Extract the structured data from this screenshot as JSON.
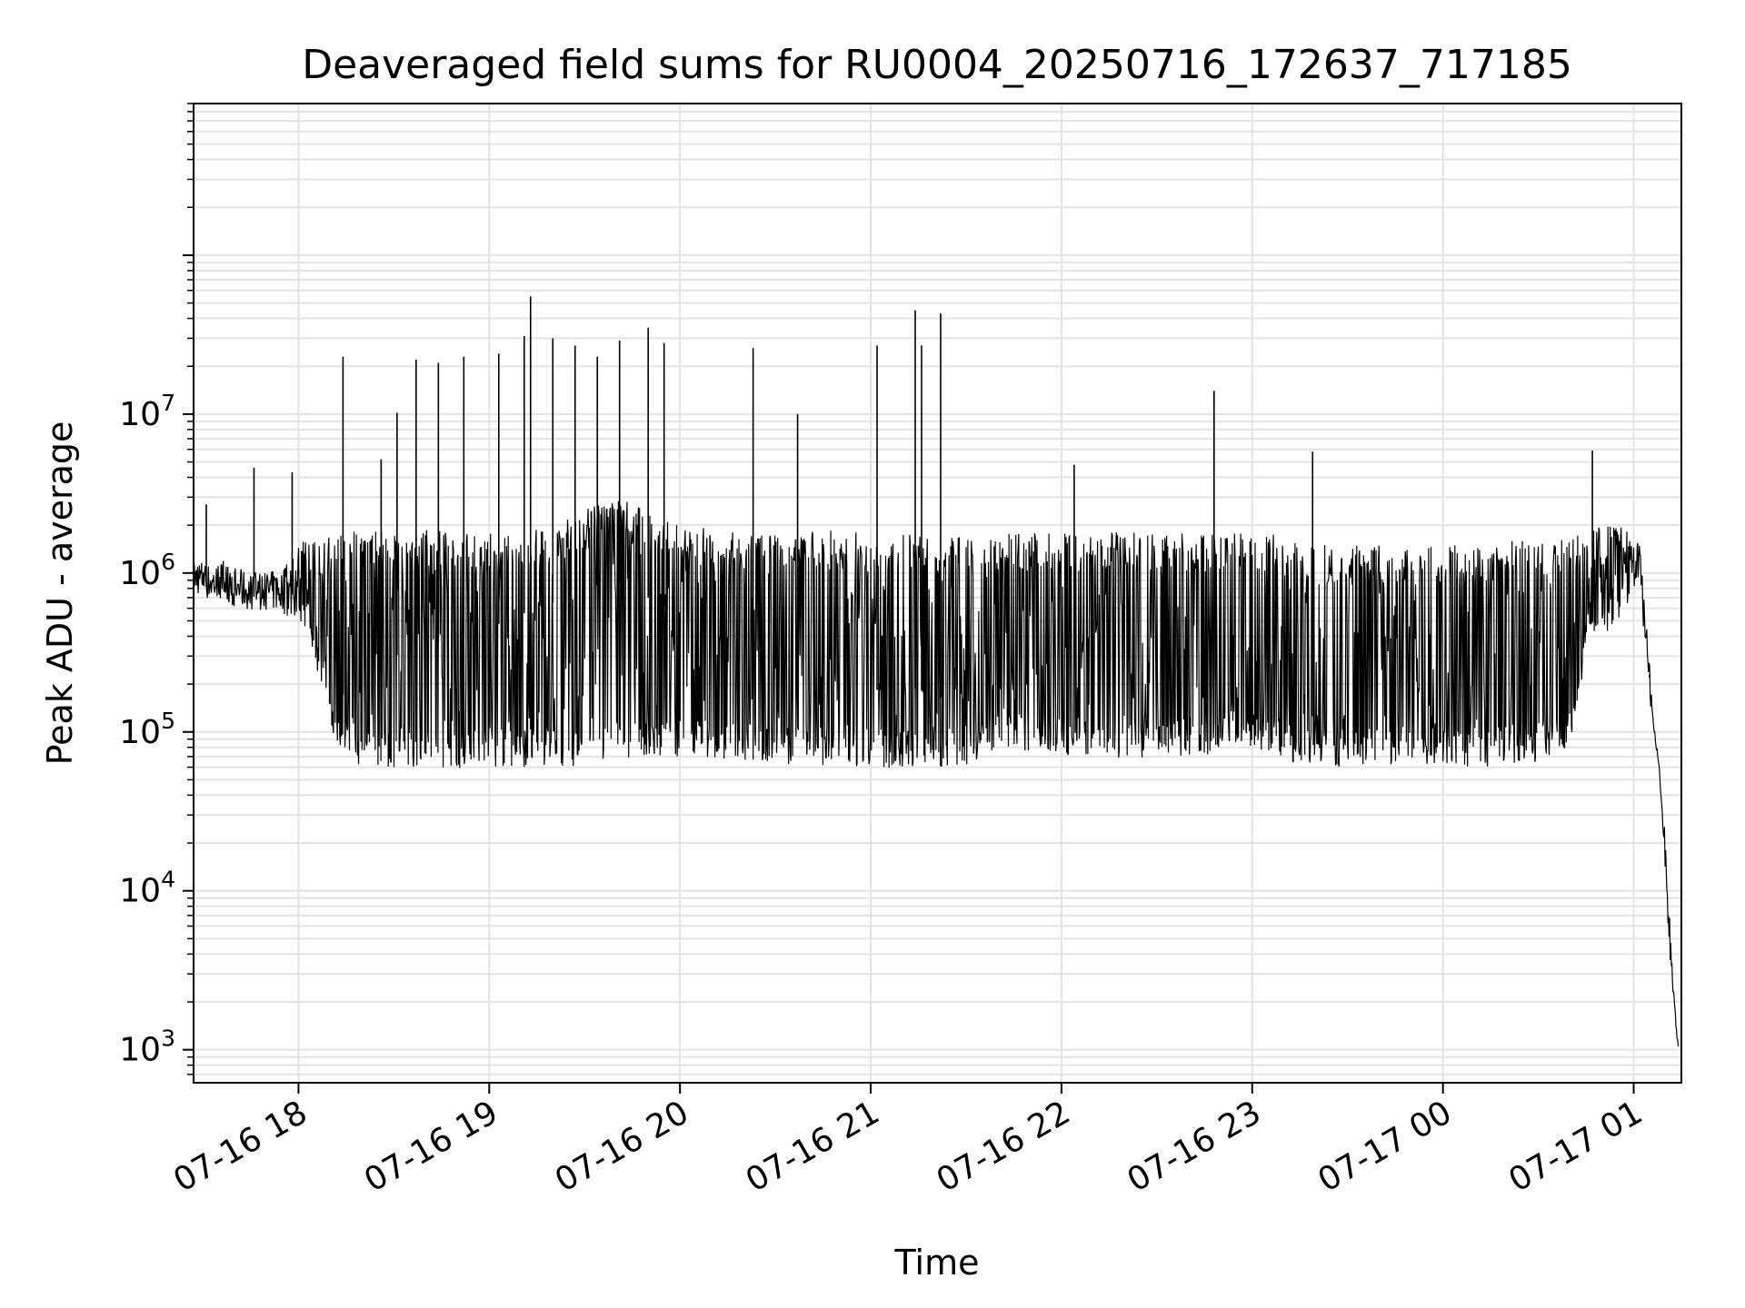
{
  "chart_data": {
    "type": "line",
    "title": "Deaveraged field sums for RU0004_20250716_172637_717185",
    "xlabel": "Time",
    "ylabel": "Peak ADU - average",
    "yscale": "log",
    "grid": true,
    "line_color": "#000000",
    "xlim": [
      "2025-07-16 17:27",
      "2025-07-17 01:15"
    ],
    "ylim": [
      620,
      900000000
    ],
    "x_ticks": [
      {
        "value": "2025-07-16 18:00",
        "label": "07-16 18"
      },
      {
        "value": "2025-07-16 19:00",
        "label": "07-16 19"
      },
      {
        "value": "2025-07-16 20:00",
        "label": "07-16 20"
      },
      {
        "value": "2025-07-16 21:00",
        "label": "07-16 21"
      },
      {
        "value": "2025-07-16 22:00",
        "label": "07-16 22"
      },
      {
        "value": "2025-07-16 23:00",
        "label": "07-16 23"
      },
      {
        "value": "2025-07-17 00:00",
        "label": "07-17 00"
      },
      {
        "value": "2025-07-17 01:00",
        "label": "07-17 01"
      }
    ],
    "y_ticks": [
      {
        "value": 1000,
        "base": "10",
        "exp": "3"
      },
      {
        "value": 10000,
        "base": "10",
        "exp": "4"
      },
      {
        "value": 100000,
        "base": "10",
        "exp": "5"
      },
      {
        "value": 1000000,
        "base": "10",
        "exp": "6"
      },
      {
        "value": 10000000,
        "base": "10",
        "exp": "7"
      }
    ],
    "series": [
      {
        "x": [
          "2025-07-16 17:27",
          "2025-07-16 17:30",
          "2025-07-16 17:33",
          "2025-07-16 17:36",
          "2025-07-16 17:40",
          "2025-07-16 17:45",
          "2025-07-16 17:50",
          "2025-07-16 17:55",
          "2025-07-16 18:00",
          "2025-07-16 18:05",
          "2025-07-16 18:10",
          "2025-07-16 18:15",
          "2025-07-16 18:20",
          "2025-07-16 18:30",
          "2025-07-16 18:40",
          "2025-07-16 18:50",
          "2025-07-16 19:00",
          "2025-07-16 19:10",
          "2025-07-16 19:20",
          "2025-07-16 19:30",
          "2025-07-16 19:40",
          "2025-07-16 19:50",
          "2025-07-16 20:00",
          "2025-07-16 20:10",
          "2025-07-16 20:20",
          "2025-07-16 20:30",
          "2025-07-16 20:40",
          "2025-07-16 20:50",
          "2025-07-16 21:00",
          "2025-07-16 21:10",
          "2025-07-16 21:20",
          "2025-07-16 21:30",
          "2025-07-16 21:35",
          "2025-07-16 21:40",
          "2025-07-16 21:50",
          "2025-07-16 22:00",
          "2025-07-16 22:10",
          "2025-07-16 22:20",
          "2025-07-16 22:30",
          "2025-07-16 22:40",
          "2025-07-16 22:50",
          "2025-07-16 22:55",
          "2025-07-16 23:00",
          "2025-07-16 23:10",
          "2025-07-16 23:15",
          "2025-07-16 23:20",
          "2025-07-16 23:30",
          "2025-07-16 23:40",
          "2025-07-16 23:50",
          "2025-07-17 00:00",
          "2025-07-17 00:10",
          "2025-07-17 00:20",
          "2025-07-17 00:30",
          "2025-07-17 00:40",
          "2025-07-17 00:45",
          "2025-07-17 00:50",
          "2025-07-17 00:55",
          "2025-07-17 01:00",
          "2025-07-17 01:02",
          "2025-07-17 01:04",
          "2025-07-17 01:06",
          "2025-07-17 01:08",
          "2025-07-17 01:10",
          "2025-07-17 01:12",
          "2025-07-17 01:14"
        ],
        "y": [
          900000,
          800000,
          850000,
          750000,
          800000,
          700000,
          750000,
          650000,
          800000,
          500000,
          300000,
          150000,
          250000,
          300000,
          350000,
          400000,
          450000,
          550000,
          650000,
          800000,
          900000,
          700000,
          550000,
          350000,
          200000,
          150000,
          170000,
          160000,
          180000,
          200000,
          170000,
          140000,
          120000,
          400000,
          350000,
          300000,
          280000,
          250000,
          240000,
          230000,
          220000,
          400000,
          350000,
          300000,
          150000,
          120000,
          250000,
          250000,
          240000,
          250000,
          260000,
          270000,
          280000,
          400000,
          650000,
          800000,
          900000,
          1100000,
          1050000,
          400000,
          120000,
          60000,
          15000,
          3000,
          1000
        ],
        "lo": [
          750000,
          700000,
          650000,
          680000,
          600000,
          580000,
          600000,
          550000,
          500000,
          300000,
          90000,
          70000,
          60000,
          60000,
          60000,
          58000,
          60000,
          60000,
          62000,
          60000,
          62000,
          65000,
          70000,
          68000,
          65000,
          62000,
          60000,
          58000,
          60000,
          58000,
          60000,
          62000,
          70000,
          80000,
          75000,
          72000,
          70000,
          68000,
          70000,
          70000,
          72000,
          80000,
          75000,
          70000,
          60000,
          55000,
          62000,
          60000,
          62000,
          62000,
          60000,
          62000,
          65000,
          80000,
          300000,
          400000,
          500000,
          700000,
          700000,
          300000,
          100000,
          50000,
          12000,
          2500,
          1000
        ],
        "hi": [
          1300000,
          1200000,
          1100000,
          1200000,
          1100000,
          1000000,
          1000000,
          1100000,
          1600000,
          1600000,
          1700000,
          1800000,
          1900000,
          1800000,
          1900000,
          1800000,
          1800000,
          1900000,
          2000000,
          2500000,
          3000000,
          2500000,
          2000000,
          1900000,
          1800000,
          1800000,
          1800000,
          1900000,
          1800000,
          1800000,
          1700000,
          1700000,
          1500000,
          1800000,
          1800000,
          1800000,
          1800000,
          1800000,
          1800000,
          1800000,
          1800000,
          1900000,
          1900000,
          1700000,
          1500000,
          1500000,
          1500000,
          1500000,
          1500000,
          1500000,
          1500000,
          1600000,
          1600000,
          1700000,
          1800000,
          2000000,
          2200000,
          1800000,
          1500000,
          600000,
          150000,
          70000,
          20000,
          4000,
          1000
        ]
      }
    ],
    "spikes": [
      {
        "x": "2025-07-16 17:31",
        "y": 2700000
      },
      {
        "x": "2025-07-16 17:46",
        "y": 4600000
      },
      {
        "x": "2025-07-16 17:58",
        "y": 4300000
      },
      {
        "x": "2025-07-16 18:14",
        "y": 23000000
      },
      {
        "x": "2025-07-16 18:26",
        "y": 5200000
      },
      {
        "x": "2025-07-16 18:31",
        "y": 10200000
      },
      {
        "x": "2025-07-16 18:37",
        "y": 22000000
      },
      {
        "x": "2025-07-16 18:44",
        "y": 21000000
      },
      {
        "x": "2025-07-16 18:52",
        "y": 23000000
      },
      {
        "x": "2025-07-16 19:03",
        "y": 24000000
      },
      {
        "x": "2025-07-16 19:11",
        "y": 31000000
      },
      {
        "x": "2025-07-16 19:13",
        "y": 55000000
      },
      {
        "x": "2025-07-16 19:20",
        "y": 30000000
      },
      {
        "x": "2025-07-16 19:27",
        "y": 27000000
      },
      {
        "x": "2025-07-16 19:34",
        "y": 23000000
      },
      {
        "x": "2025-07-16 19:41",
        "y": 29000000
      },
      {
        "x": "2025-07-16 19:50",
        "y": 35000000
      },
      {
        "x": "2025-07-16 19:55",
        "y": 28000000
      },
      {
        "x": "2025-07-16 20:23",
        "y": 26000000
      },
      {
        "x": "2025-07-16 20:37",
        "y": 10000000
      },
      {
        "x": "2025-07-16 21:02",
        "y": 27000000
      },
      {
        "x": "2025-07-16 21:14",
        "y": 45000000
      },
      {
        "x": "2025-07-16 21:16",
        "y": 27000000
      },
      {
        "x": "2025-07-16 21:22",
        "y": 43000000
      },
      {
        "x": "2025-07-16 22:04",
        "y": 4800000
      },
      {
        "x": "2025-07-16 22:48",
        "y": 14000000
      },
      {
        "x": "2025-07-16 23:19",
        "y": 5800000
      },
      {
        "x": "2025-07-17 00:47",
        "y": 5900000
      },
      {
        "x": "2025-07-17 01:05",
        "y": 230000
      }
    ]
  }
}
